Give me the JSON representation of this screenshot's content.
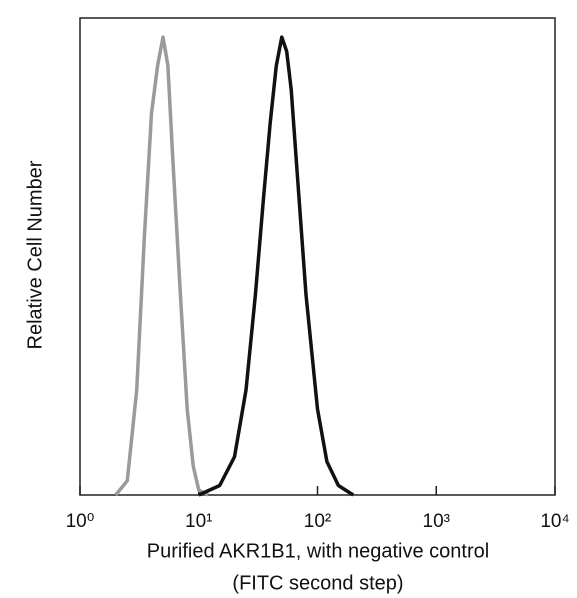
{
  "chart_data": {
    "type": "line",
    "ylabel": "Relative Cell Number",
    "xlabel": [
      "Purified AKR1B1, with negative control",
      "(FITC second step)"
    ],
    "xscale": "log",
    "xlim": [
      1,
      10000
    ],
    "xticks": [
      {
        "value": 1,
        "label": "10⁰"
      },
      {
        "value": 10,
        "label": "10¹"
      },
      {
        "value": 100,
        "label": "10²"
      },
      {
        "value": 1000,
        "label": "10³"
      },
      {
        "value": 10000,
        "label": "10⁴"
      }
    ],
    "ylim": [
      0,
      100
    ],
    "series": [
      {
        "color": "#9a9a9a",
        "x": [
          2,
          2.5,
          3,
          3.5,
          4,
          4.5,
          5,
          5.5,
          6,
          7,
          8,
          9,
          10,
          12
        ],
        "values": [
          0,
          3,
          22,
          55,
          80,
          90,
          96,
          90,
          72,
          42,
          18,
          6,
          1,
          0
        ]
      },
      {
        "color": "#111111",
        "x": [
          10,
          15,
          20,
          25,
          30,
          35,
          40,
          45,
          50,
          55,
          60,
          70,
          80,
          100,
          120,
          150,
          200
        ],
        "values": [
          0,
          2,
          8,
          22,
          42,
          62,
          78,
          90,
          96,
          93,
          85,
          62,
          42,
          18,
          7,
          2,
          0
        ]
      }
    ]
  }
}
